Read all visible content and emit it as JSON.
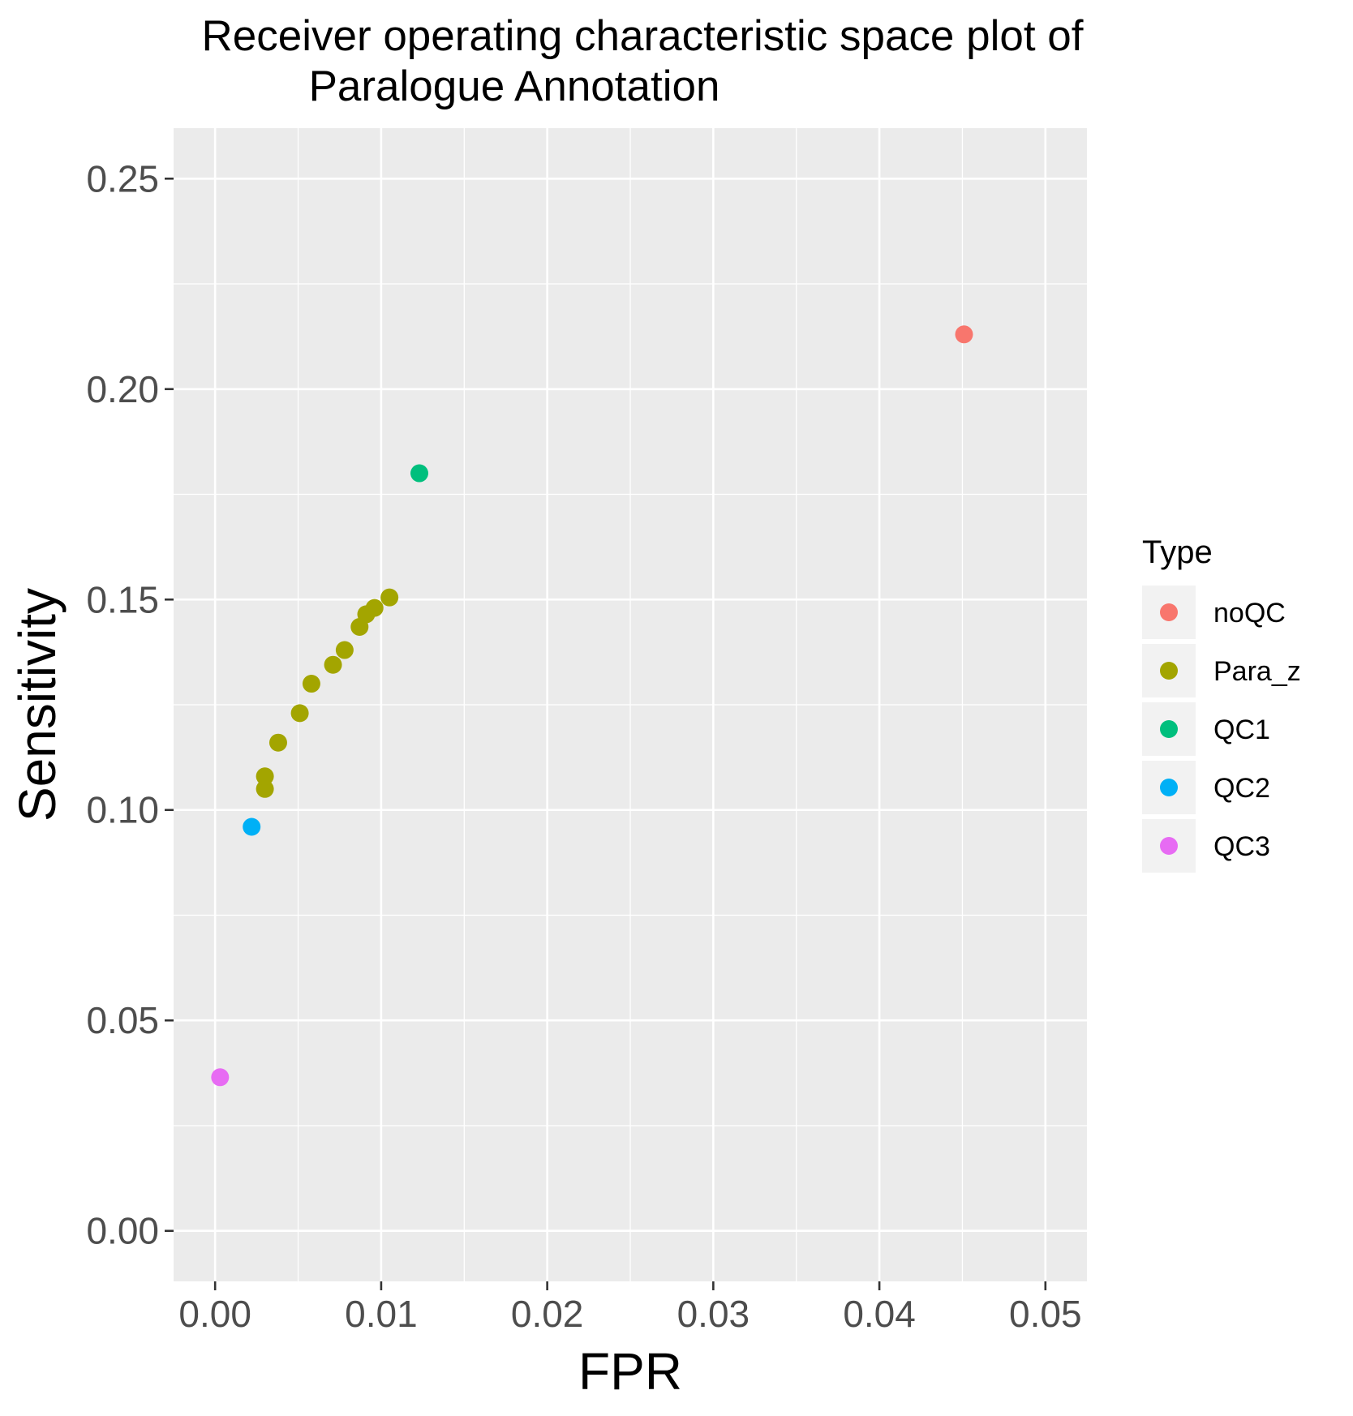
{
  "chart_data": {
    "type": "scatter",
    "title_lines": [
      "Receiver operating characteristic space plot of",
      "Paralogue Annotation"
    ],
    "xlabel": "FPR",
    "ylabel": "Sensitivity",
    "xlim": [
      -0.0025,
      0.0525
    ],
    "ylim": [
      -0.012,
      0.262
    ],
    "x_ticks": [
      0.0,
      0.01,
      0.02,
      0.03,
      0.04,
      0.05
    ],
    "x_tick_labels": [
      "0.00",
      "0.01",
      "0.02",
      "0.03",
      "0.04",
      "0.05"
    ],
    "y_ticks": [
      0.0,
      0.05,
      0.1,
      0.15,
      0.2,
      0.25
    ],
    "y_tick_labels": [
      "0.00",
      "0.05",
      "0.10",
      "0.15",
      "0.20",
      "0.25"
    ],
    "grid": true,
    "legend": {
      "title": "Type",
      "position": "right"
    },
    "series": [
      {
        "name": "noQC",
        "color": "#F8766D",
        "points": [
          [
            0.0451,
            0.213
          ]
        ]
      },
      {
        "name": "Para_z",
        "color": "#A3A500",
        "points": [
          [
            0.003,
            0.105
          ],
          [
            0.003,
            0.108
          ],
          [
            0.0038,
            0.116
          ],
          [
            0.0051,
            0.123
          ],
          [
            0.0058,
            0.13
          ],
          [
            0.0071,
            0.1345
          ],
          [
            0.0078,
            0.138
          ],
          [
            0.0087,
            0.1435
          ],
          [
            0.0091,
            0.1465
          ],
          [
            0.0096,
            0.148
          ],
          [
            0.0105,
            0.1505
          ]
        ]
      },
      {
        "name": "QC1",
        "color": "#00BF7D",
        "points": [
          [
            0.0123,
            0.18
          ]
        ]
      },
      {
        "name": "QC2",
        "color": "#00B0F6",
        "points": [
          [
            0.0022,
            0.096
          ]
        ]
      },
      {
        "name": "QC3",
        "color": "#E76BF3",
        "points": [
          [
            0.0003,
            0.0365
          ]
        ]
      }
    ]
  }
}
